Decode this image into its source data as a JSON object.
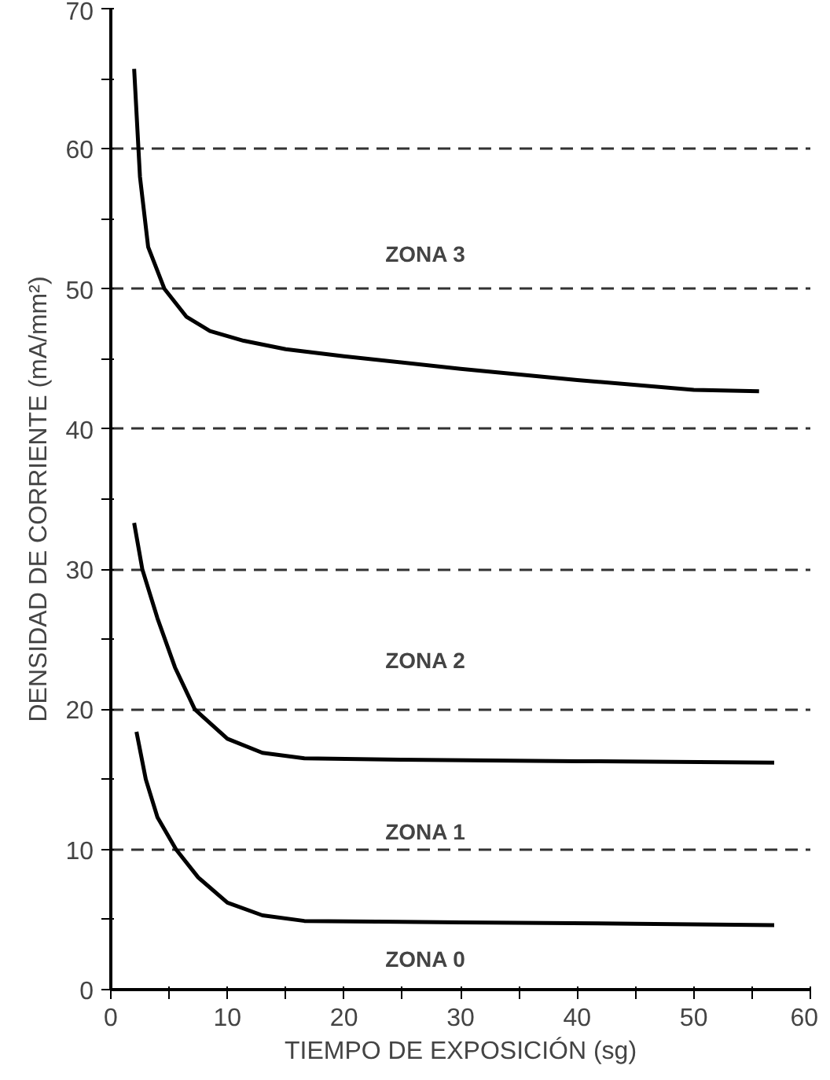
{
  "chart_data": {
    "type": "line",
    "xlabel": "TIEMPO DE EXPOSICIÓN (sg)",
    "ylabel": "DENSIDAD DE CORRIENTE (mA/mm²)",
    "xlim": [
      0,
      60
    ],
    "ylim": [
      0,
      70
    ],
    "xticks": [
      0,
      {
        "value": 5,
        "label": null
      },
      10,
      {
        "value": 15,
        "label": null
      },
      20,
      {
        "value": 25,
        "label": null
      },
      30,
      {
        "value": 35,
        "label": null
      },
      40,
      {
        "value": 45,
        "label": null
      },
      50,
      {
        "value": 55,
        "label": null
      },
      60
    ],
    "yticks": [
      0,
      {
        "value": 5,
        "label": null
      },
      10,
      {
        "value": 15,
        "label": null
      },
      20,
      {
        "value": 25,
        "label": null
      },
      30,
      {
        "value": 35,
        "label": null
      },
      40,
      {
        "value": 45,
        "label": null
      },
      50,
      {
        "value": 55,
        "label": null
      },
      60,
      {
        "value": 65,
        "label": null
      },
      70
    ],
    "grid": "y",
    "marker": "none",
    "line_style": "solid",
    "series": [
      {
        "color": "#000000",
        "x": [
          2.0,
          2.5,
          3.2,
          4.6,
          6.5,
          8.5,
          11.4,
          15,
          20,
          30,
          40,
          50,
          55.6
        ],
        "values": [
          65.7,
          58,
          53,
          50,
          48,
          47,
          46.3,
          45.7,
          45.2,
          44.3,
          43.5,
          42.8,
          42.7
        ]
      },
      {
        "color": "#000000",
        "x": [
          2.0,
          2.7,
          4,
          5.5,
          7.2,
          10,
          13,
          16.6,
          25,
          40,
          56.9
        ],
        "values": [
          33.3,
          30,
          26.5,
          23,
          20,
          17.9,
          16.9,
          16.5,
          16.4,
          16.3,
          16.2
        ]
      },
      {
        "color": "#000000",
        "x": [
          2.2,
          3,
          4,
          5.6,
          7.5,
          10,
          13,
          16.6,
          30,
          45,
          56.9
        ],
        "values": [
          18.4,
          15,
          12.3,
          10,
          8,
          6.2,
          5.3,
          4.9,
          4.8,
          4.7,
          4.6
        ]
      }
    ],
    "annotations": [
      "ZONA 3",
      "ZONA 2",
      "ZONA 1",
      "ZONA 0"
    ]
  }
}
